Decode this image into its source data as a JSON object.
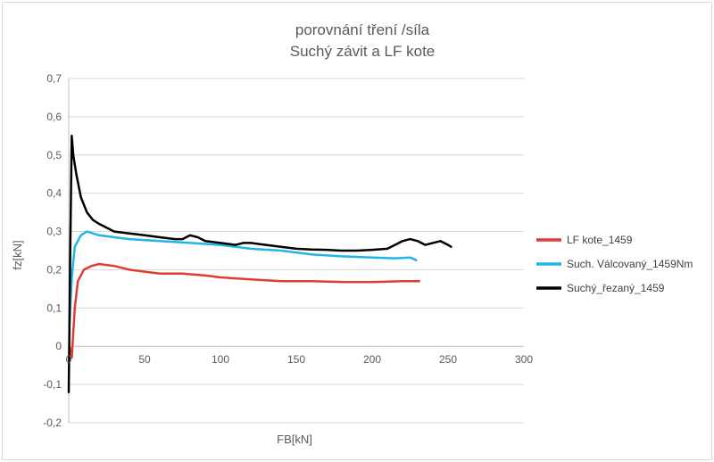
{
  "chart_data": {
    "type": "line",
    "title": [
      "porovnání tření /síla",
      "Suchý závit a  LF kote"
    ],
    "xlabel": "FB[kN]",
    "ylabel": "fz[kN]",
    "xlim": [
      0,
      300
    ],
    "ylim": [
      -0.2,
      0.7
    ],
    "x_ticks": [
      0,
      50,
      100,
      150,
      200,
      250,
      300
    ],
    "y_ticks": [
      -0.2,
      -0.1,
      0,
      0.1,
      0.2,
      0.3,
      0.4,
      0.5,
      0.6,
      0.7
    ],
    "x_tick_labels": [
      "0",
      "50",
      "100",
      "150",
      "200",
      "250",
      "300"
    ],
    "y_tick_labels": [
      "-0,2",
      "-0,1",
      "0",
      "0,1",
      "0,2",
      "0,3",
      "0,4",
      "0,5",
      "0,6",
      "0,7"
    ],
    "grid": "horizontal",
    "legend_position": "right",
    "series": [
      {
        "name": "LF kote_1459",
        "color": "#e03c31",
        "points": [
          [
            0.5,
            0.0
          ],
          [
            2,
            -0.03
          ],
          [
            4,
            0.1
          ],
          [
            6,
            0.17
          ],
          [
            10,
            0.2
          ],
          [
            15,
            0.21
          ],
          [
            20,
            0.215
          ],
          [
            30,
            0.21
          ],
          [
            40,
            0.2
          ],
          [
            50,
            0.195
          ],
          [
            60,
            0.19
          ],
          [
            75,
            0.19
          ],
          [
            90,
            0.185
          ],
          [
            100,
            0.18
          ],
          [
            120,
            0.175
          ],
          [
            140,
            0.17
          ],
          [
            160,
            0.17
          ],
          [
            180,
            0.168
          ],
          [
            200,
            0.168
          ],
          [
            220,
            0.17
          ],
          [
            231,
            0.17
          ]
        ]
      },
      {
        "name": "Such. Válcovaný_1459Nm",
        "color": "#1fb5e8",
        "points": [
          [
            0.5,
            0.05
          ],
          [
            2,
            0.18
          ],
          [
            4,
            0.26
          ],
          [
            8,
            0.29
          ],
          [
            12,
            0.3
          ],
          [
            20,
            0.29
          ],
          [
            30,
            0.285
          ],
          [
            40,
            0.28
          ],
          [
            60,
            0.275
          ],
          [
            80,
            0.27
          ],
          [
            100,
            0.265
          ],
          [
            120,
            0.255
          ],
          [
            140,
            0.25
          ],
          [
            160,
            0.24
          ],
          [
            180,
            0.235
          ],
          [
            200,
            0.232
          ],
          [
            215,
            0.23
          ],
          [
            225,
            0.232
          ],
          [
            229,
            0.225
          ]
        ]
      },
      {
        "name": "Suchý_řezaný_1459",
        "color": "#000000",
        "points": [
          [
            0,
            -0.12
          ],
          [
            1,
            0.25
          ],
          [
            2,
            0.55
          ],
          [
            3,
            0.5
          ],
          [
            5,
            0.45
          ],
          [
            8,
            0.39
          ],
          [
            12,
            0.35
          ],
          [
            16,
            0.33
          ],
          [
            20,
            0.32
          ],
          [
            30,
            0.3
          ],
          [
            40,
            0.295
          ],
          [
            50,
            0.29
          ],
          [
            60,
            0.285
          ],
          [
            70,
            0.28
          ],
          [
            75,
            0.28
          ],
          [
            80,
            0.29
          ],
          [
            85,
            0.285
          ],
          [
            90,
            0.275
          ],
          [
            100,
            0.27
          ],
          [
            110,
            0.265
          ],
          [
            115,
            0.27
          ],
          [
            120,
            0.27
          ],
          [
            130,
            0.265
          ],
          [
            140,
            0.26
          ],
          [
            150,
            0.255
          ],
          [
            160,
            0.253
          ],
          [
            170,
            0.252
          ],
          [
            180,
            0.25
          ],
          [
            190,
            0.25
          ],
          [
            200,
            0.252
          ],
          [
            210,
            0.255
          ],
          [
            215,
            0.265
          ],
          [
            220,
            0.275
          ],
          [
            225,
            0.28
          ],
          [
            230,
            0.275
          ],
          [
            235,
            0.265
          ],
          [
            240,
            0.27
          ],
          [
            245,
            0.275
          ],
          [
            250,
            0.265
          ],
          [
            252,
            0.26
          ]
        ]
      }
    ]
  }
}
